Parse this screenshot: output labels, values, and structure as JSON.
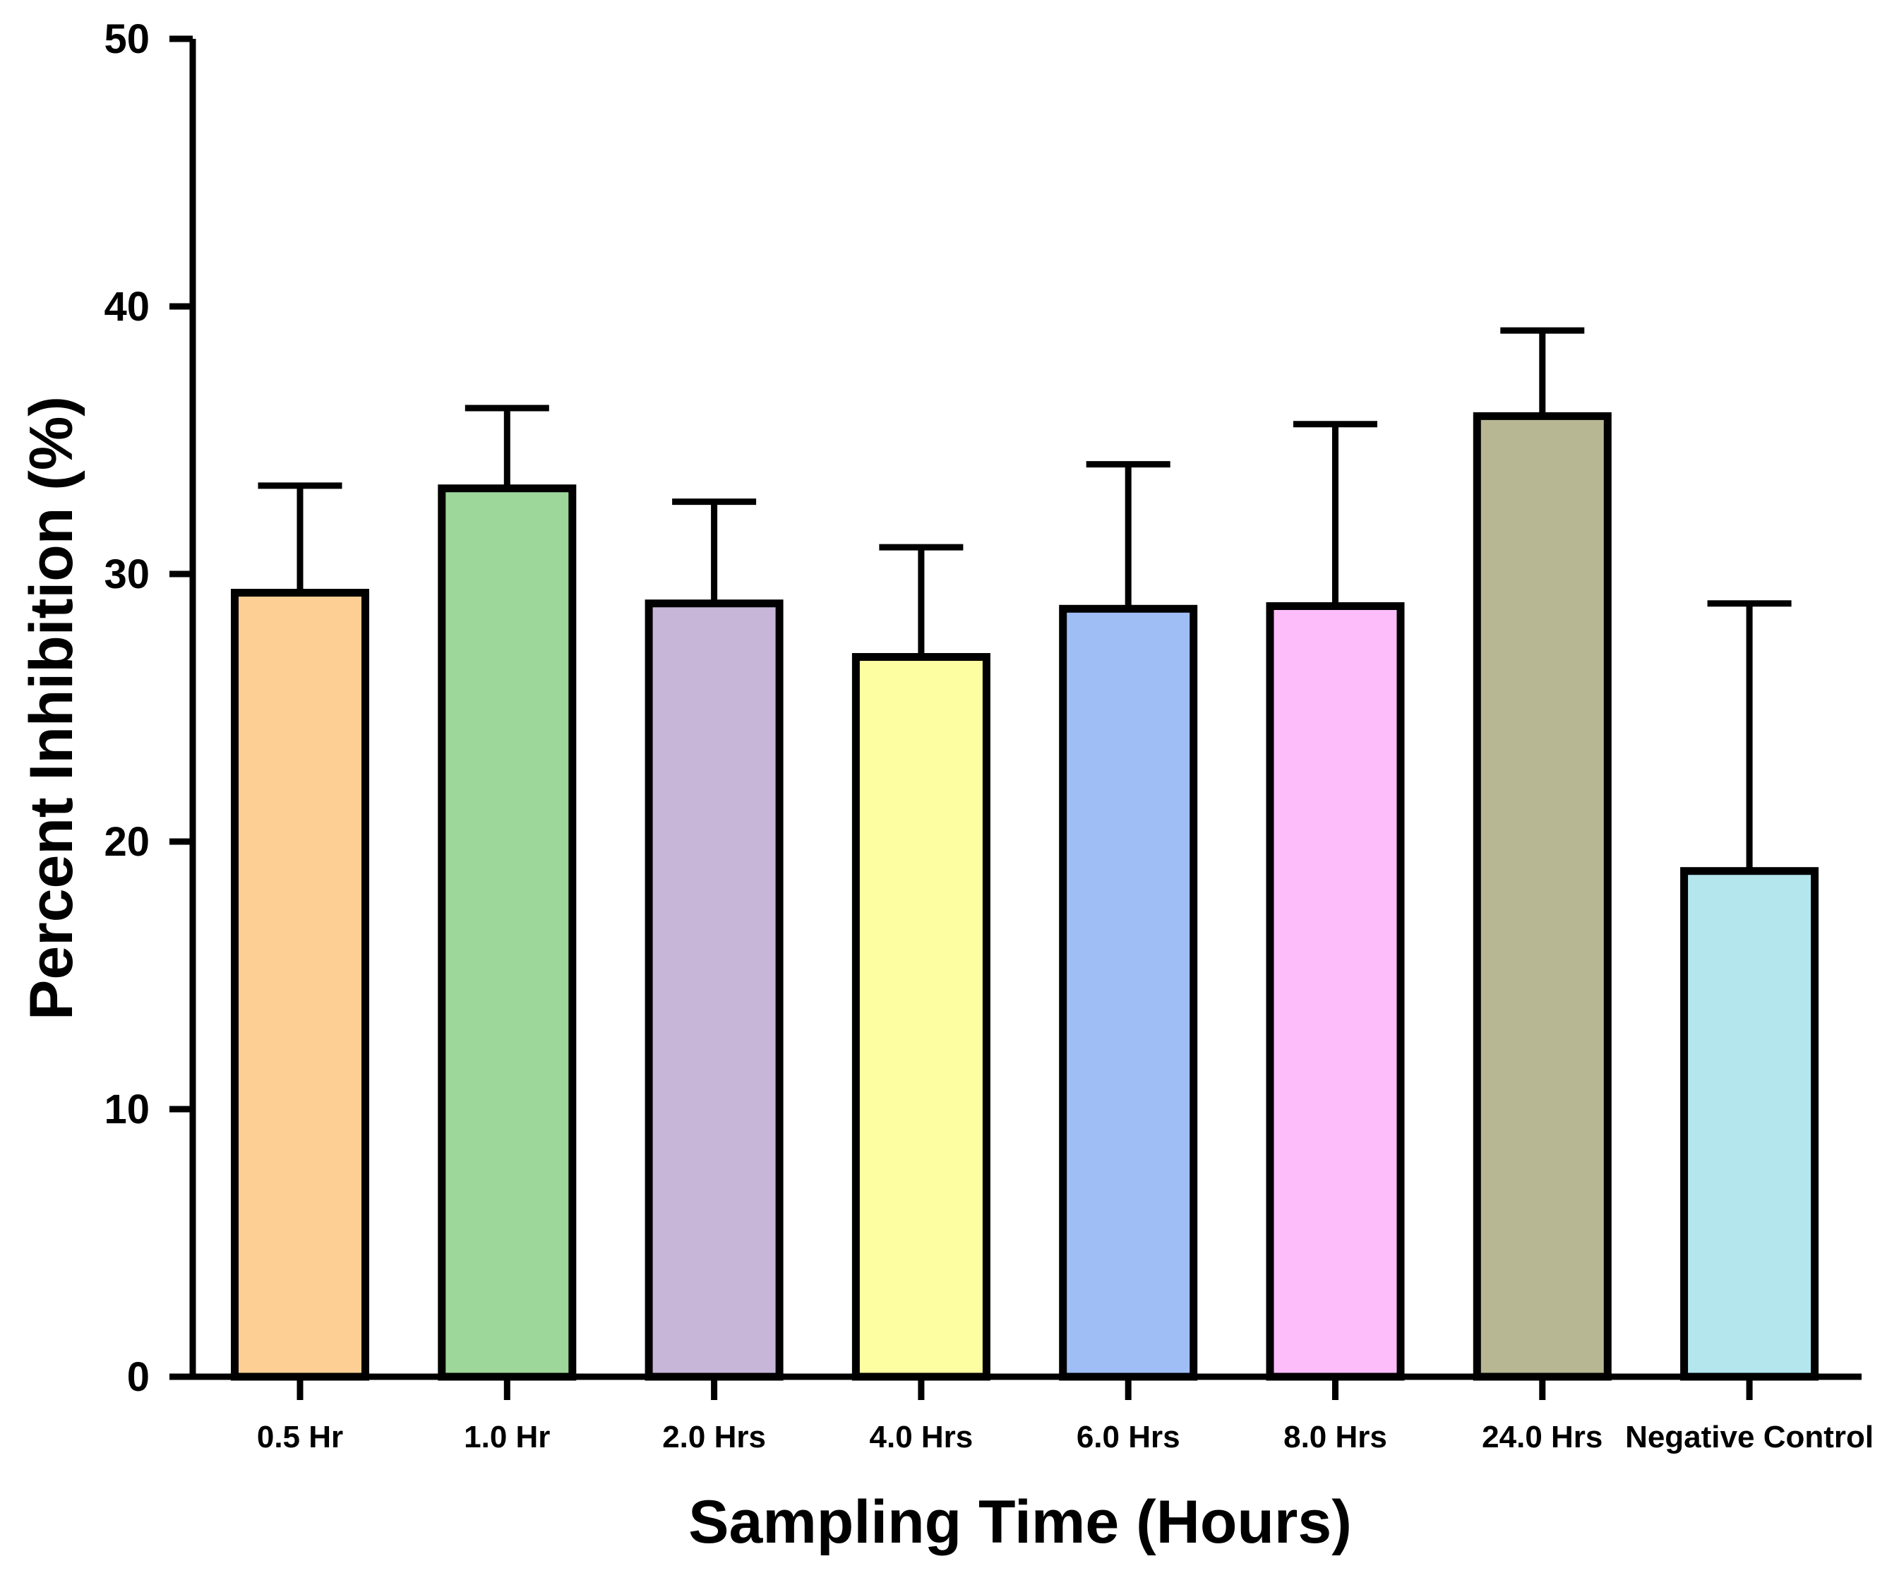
{
  "chart_data": {
    "type": "bar",
    "title": "",
    "xlabel": "Sampling Time (Hours)",
    "ylabel": "Percent Inhibition (%)",
    "ylim": [
      0,
      50
    ],
    "yticks": [
      0,
      10,
      20,
      30,
      40,
      50
    ],
    "grid": false,
    "legend": "none",
    "categories": [
      "0.5 Hr",
      "1.0 Hr",
      "2.0 Hrs",
      "4.0 Hrs",
      "6.0 Hrs",
      "8.0 Hrs",
      "24.0 Hrs",
      "Negative Control"
    ],
    "series": [
      {
        "name": "Percent Inhibition",
        "values": [
          29.3,
          33.2,
          28.9,
          26.9,
          28.7,
          28.8,
          35.9,
          18.9
        ],
        "error_plus": [
          4.0,
          3.0,
          3.8,
          4.1,
          5.4,
          6.8,
          3.2,
          10.0
        ],
        "colors": [
          "#FDCF95",
          "#9ED79A",
          "#C8B6D9",
          "#FDFDA1",
          "#A0BEF6",
          "#FDBDFB",
          "#B7B794",
          "#B3E6ED"
        ]
      }
    ]
  }
}
